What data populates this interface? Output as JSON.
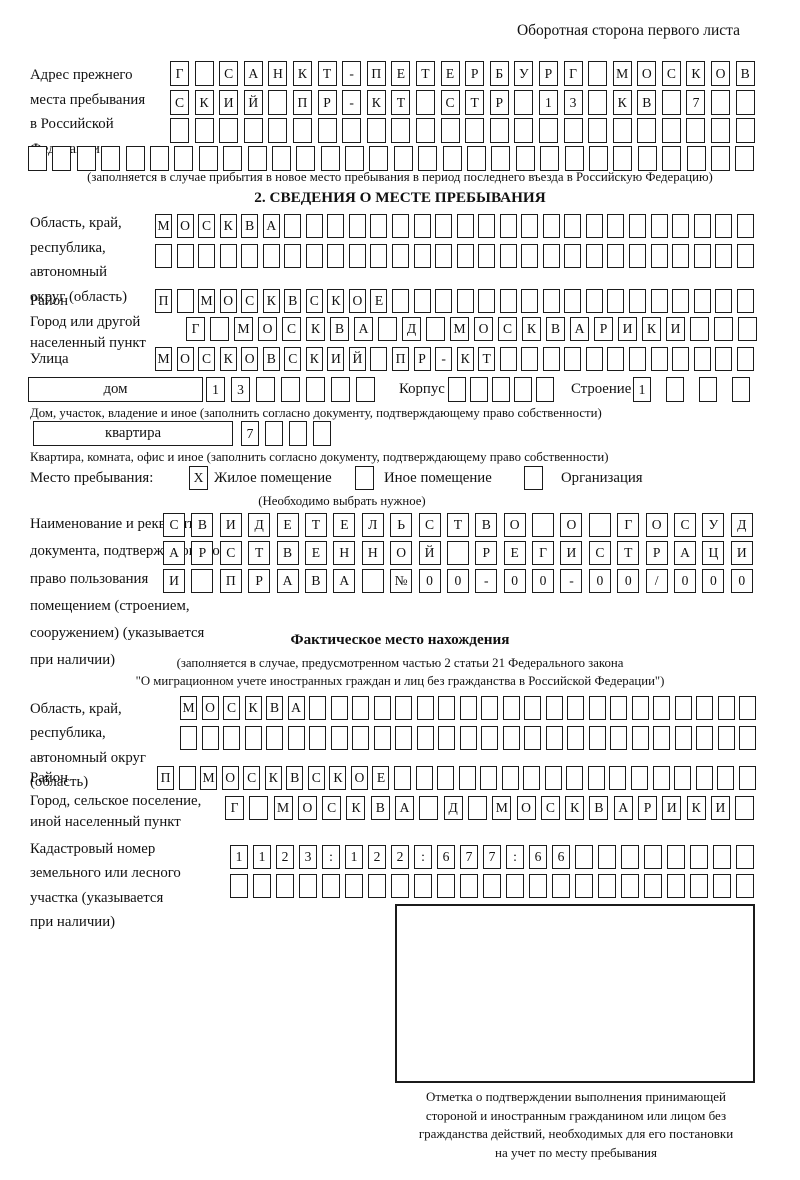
{
  "page": {
    "header_note": "Оборотная сторона первого листа"
  },
  "prev_address": {
    "label_lines": [
      "Адрес прежнего",
      "места пребывания",
      "в Российской",
      "Федерации"
    ],
    "note": "(заполняется в случае прибытия в новое место пребывания в период последнего въезда в Российскую Федерацию)"
  },
  "section2": {
    "title": "2. СВЕДЕНИЯ О МЕСТЕ ПРЕБЫВАНИЯ",
    "region_label_lines": [
      "Область, край,",
      "республика,",
      "автономный",
      "округ (область)"
    ],
    "district_label": "Район",
    "city_label_lines": [
      "Город или другой",
      "населенный пункт"
    ],
    "street_label": "Улица",
    "house_box_label": "дом",
    "korpus_label": "Корпус",
    "stroenie_label": "Строение",
    "house_note": "Дом, участок, владение и иное (заполнить согласно документу, подтверждающему право собственности)",
    "apartment_box_label": "квартира",
    "apartment_note": "Квартира, комната, офис и иное (заполнить согласно документу, подтверждающему право собственности)",
    "stay_type": {
      "label": "Место пребывания:",
      "options": [
        {
          "name": "Жилое помещение",
          "mark": "X"
        },
        {
          "name": "Иное помещение",
          "mark": ""
        },
        {
          "name": "Организация",
          "mark": ""
        }
      ],
      "note": "(Необходимо выбрать нужное)"
    },
    "doc_label_lines": [
      "Наименование и реквизиты",
      "документа, подтверждающего",
      "право пользования",
      "помещением (строением,",
      "сооружением) (указывается",
      "при наличии)"
    ]
  },
  "actual_location": {
    "title": "Фактическое место нахождения",
    "note_lines": [
      "(заполняется в случае, предусмотренном частью 2 статьи 21 Федерального закона",
      "\"О миграционном учете иностранных граждан и лиц без гражданства в Российской Федерации\")"
    ],
    "region_label_lines": [
      "Область, край,",
      "республика,",
      "автономный округ",
      "(область)"
    ],
    "district_label": "Район",
    "city_label_lines": [
      "Город, сельское поселение,",
      "иной населенный пункт"
    ],
    "cadastre_label_lines": [
      "Кадастровый номер",
      "земельного или лесного",
      "участка (указывается",
      "при наличии)"
    ],
    "mark_caption_lines": [
      "Отметка о подтверждении выполнения принимающей",
      "стороной и иностранным гражданином или лицом без",
      "гражданства действий, необходимых для его постановки",
      "на учет по месту пребывания"
    ]
  },
  "boxrows": {
    "prev1": {
      "text": "Г САНКТ-ПЕТЕРБУРГ МОСКОВ",
      "count": 24
    },
    "prev2": {
      "text": "СКИЙ ПР-КТ СТР 13 КВ 7",
      "count": 24
    },
    "prev3": {
      "text": "",
      "count": 24
    },
    "prev4": {
      "text": "",
      "count": 30
    },
    "s2_region1": {
      "text": "МОСКВА",
      "count": 28
    },
    "s2_region2": {
      "text": "",
      "count": 28
    },
    "s2_district": {
      "text": "П МОСКВСКОЕ",
      "count": 28
    },
    "s2_city": {
      "text": "Г МОСКВА Д МОСКВАРИКИ",
      "count": 24
    },
    "s2_street": {
      "text": "МОСКОВСКИЙ ПР-КТ",
      "count": 28
    },
    "s2_house": {
      "text": "13",
      "count": 7
    },
    "s2_korpus": {
      "text": "",
      "count": 5
    },
    "s2_stroenie": {
      "text": "1",
      "count": 4
    },
    "s2_apartment": {
      "text": "7",
      "count": 4
    },
    "doc1": {
      "text": "СВИДЕТЕЛЬСТВО О ГОСУД",
      "count": 21
    },
    "doc2": {
      "text": "АРСТВЕННОЙ РЕГИСТРАЦИ",
      "count": 21
    },
    "doc3": {
      "text": "И ПРАВА №00-00-00/000",
      "count": 21
    },
    "s3_region1": {
      "text": "МОСКВА",
      "count": 27
    },
    "s3_region2": {
      "text": "",
      "count": 27
    },
    "s3_district": {
      "text": "П МОСКВСКОЕ",
      "count": 28
    },
    "s3_city": {
      "text": "Г МОСКВА Д МОСКВАРИКИ",
      "count": 22
    },
    "s3_cadastre1": {
      "text": "1123:122:677:66",
      "count": 23
    },
    "s3_cadastre2": {
      "text": "",
      "count": 23
    }
  }
}
